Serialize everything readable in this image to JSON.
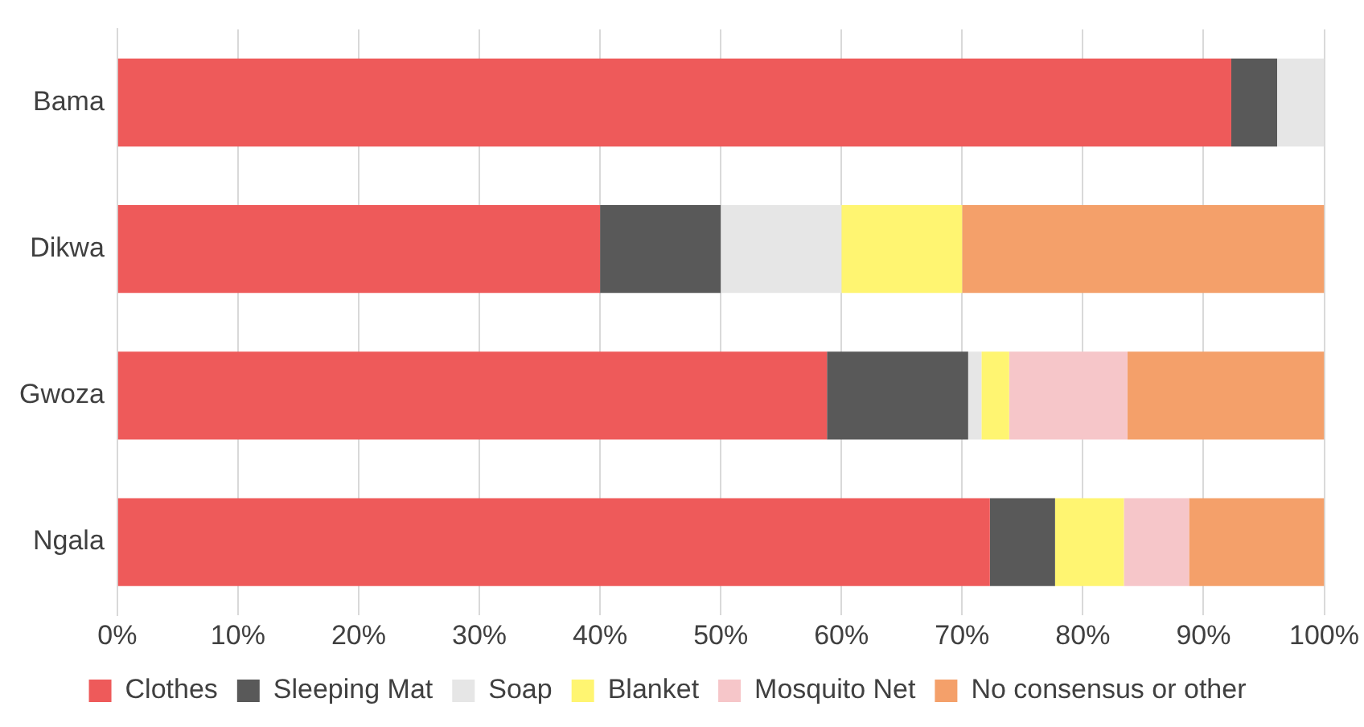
{
  "chart_data": {
    "type": "bar",
    "orientation": "horizontal",
    "stacked": true,
    "categories": [
      "Bama",
      "Dikwa",
      "Gwoza",
      "Ngala"
    ],
    "series": [
      {
        "name": "Clothes",
        "color": "#ee5a5a",
        "values": [
          92.3,
          40,
          58.8,
          72.3
        ]
      },
      {
        "name": "Sleeping Mat",
        "color": "#595959",
        "values": [
          3.8,
          10,
          11.7,
          5.4
        ]
      },
      {
        "name": "Soap",
        "color": "#e6e6e6",
        "values": [
          3.9,
          10,
          1.1,
          0
        ]
      },
      {
        "name": "Blanket",
        "color": "#fff571",
        "values": [
          0,
          10,
          2.3,
          5.7
        ]
      },
      {
        "name": "Mosquito Net",
        "color": "#f6c6c9",
        "values": [
          0,
          0,
          9.8,
          5.4
        ]
      },
      {
        "name": "No consensus or other",
        "color": "#f4a06a",
        "values": [
          0,
          30,
          16.3,
          11.2
        ]
      }
    ],
    "xlim": [
      0,
      100
    ],
    "xticks": [
      {
        "value": 0,
        "label": "0%"
      },
      {
        "value": 10,
        "label": "10%"
      },
      {
        "value": 20,
        "label": "20%"
      },
      {
        "value": 30,
        "label": "30%"
      },
      {
        "value": 40,
        "label": "40%"
      },
      {
        "value": 50,
        "label": "50%"
      },
      {
        "value": 60,
        "label": "60%"
      },
      {
        "value": 70,
        "label": "70%"
      },
      {
        "value": 80,
        "label": "80%"
      },
      {
        "value": 90,
        "label": "90%"
      },
      {
        "value": 100,
        "label": "100%"
      }
    ],
    "grid": "x",
    "legend": "bottom"
  }
}
